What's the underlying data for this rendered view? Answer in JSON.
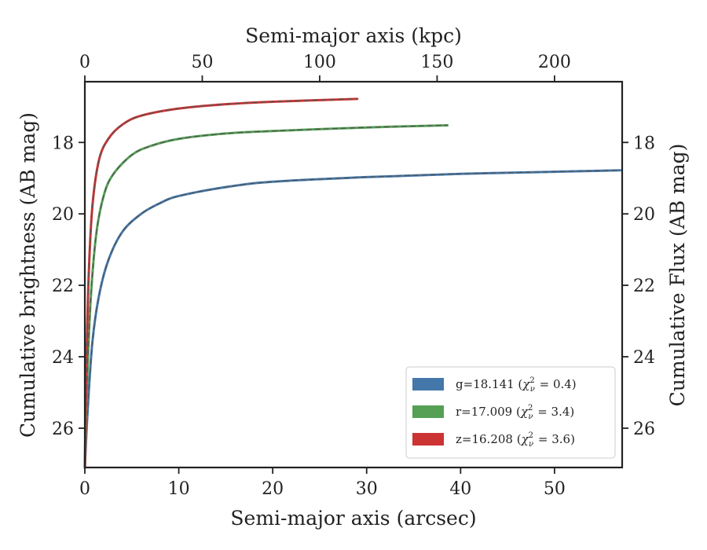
{
  "chart_data": {
    "type": "line",
    "x_bottom": {
      "label": "Semi-major axis (arcsec)",
      "range": [
        0,
        57.2
      ],
      "ticks": [
        0,
        10,
        20,
        30,
        40,
        50
      ]
    },
    "x_top": {
      "label": "Semi-major axis (kpc)",
      "range": [
        0,
        228.8
      ],
      "ticks": [
        0,
        50,
        100,
        150,
        200
      ]
    },
    "y_left": {
      "label": "Cumulative brightness (AB mag)",
      "range": [
        16.3,
        27.1
      ],
      "inverted": true,
      "ticks": [
        18,
        20,
        22,
        24,
        26
      ]
    },
    "y_right": {
      "label": "Cumulative Flux (AB mag)",
      "ticks": [
        18,
        20,
        22,
        24,
        26
      ]
    },
    "grid": false,
    "legend_position": "lower-right",
    "series": [
      {
        "band": "g",
        "legend": "g=18.141",
        "chi2": "0.4",
        "color": "#4477aa",
        "points": [
          [
            0,
            27.1
          ],
          [
            0.3,
            25.5
          ],
          [
            0.8,
            23.6
          ],
          [
            1.5,
            22.3
          ],
          [
            2.5,
            21.3
          ],
          [
            4,
            20.5
          ],
          [
            6,
            20.0
          ],
          [
            8,
            19.7
          ],
          [
            10,
            19.5
          ],
          [
            15,
            19.25
          ],
          [
            20,
            19.1
          ],
          [
            30,
            18.97
          ],
          [
            40,
            18.88
          ],
          [
            50,
            18.82
          ],
          [
            57,
            18.78
          ]
        ]
      },
      {
        "band": "r",
        "legend": "r=17.009",
        "chi2": "3.4",
        "color": "#55a055",
        "points": [
          [
            0,
            27.1
          ],
          [
            0.2,
            25.0
          ],
          [
            0.6,
            22.5
          ],
          [
            1.2,
            20.6
          ],
          [
            2,
            19.5
          ],
          [
            3,
            18.9
          ],
          [
            5,
            18.35
          ],
          [
            7,
            18.1
          ],
          [
            10,
            17.9
          ],
          [
            15,
            17.75
          ],
          [
            20,
            17.68
          ],
          [
            30,
            17.58
          ],
          [
            38.6,
            17.52
          ]
        ]
      },
      {
        "band": "z",
        "legend": "z=16.208",
        "chi2": "3.6",
        "color": "#cc3333",
        "points": [
          [
            0,
            27.1
          ],
          [
            0.15,
            24.5
          ],
          [
            0.4,
            21.8
          ],
          [
            0.8,
            19.8
          ],
          [
            1.5,
            18.5
          ],
          [
            2.5,
            17.9
          ],
          [
            4,
            17.5
          ],
          [
            6,
            17.25
          ],
          [
            10,
            17.05
          ],
          [
            15,
            16.93
          ],
          [
            20,
            16.86
          ],
          [
            29,
            16.78
          ]
        ]
      }
    ]
  }
}
